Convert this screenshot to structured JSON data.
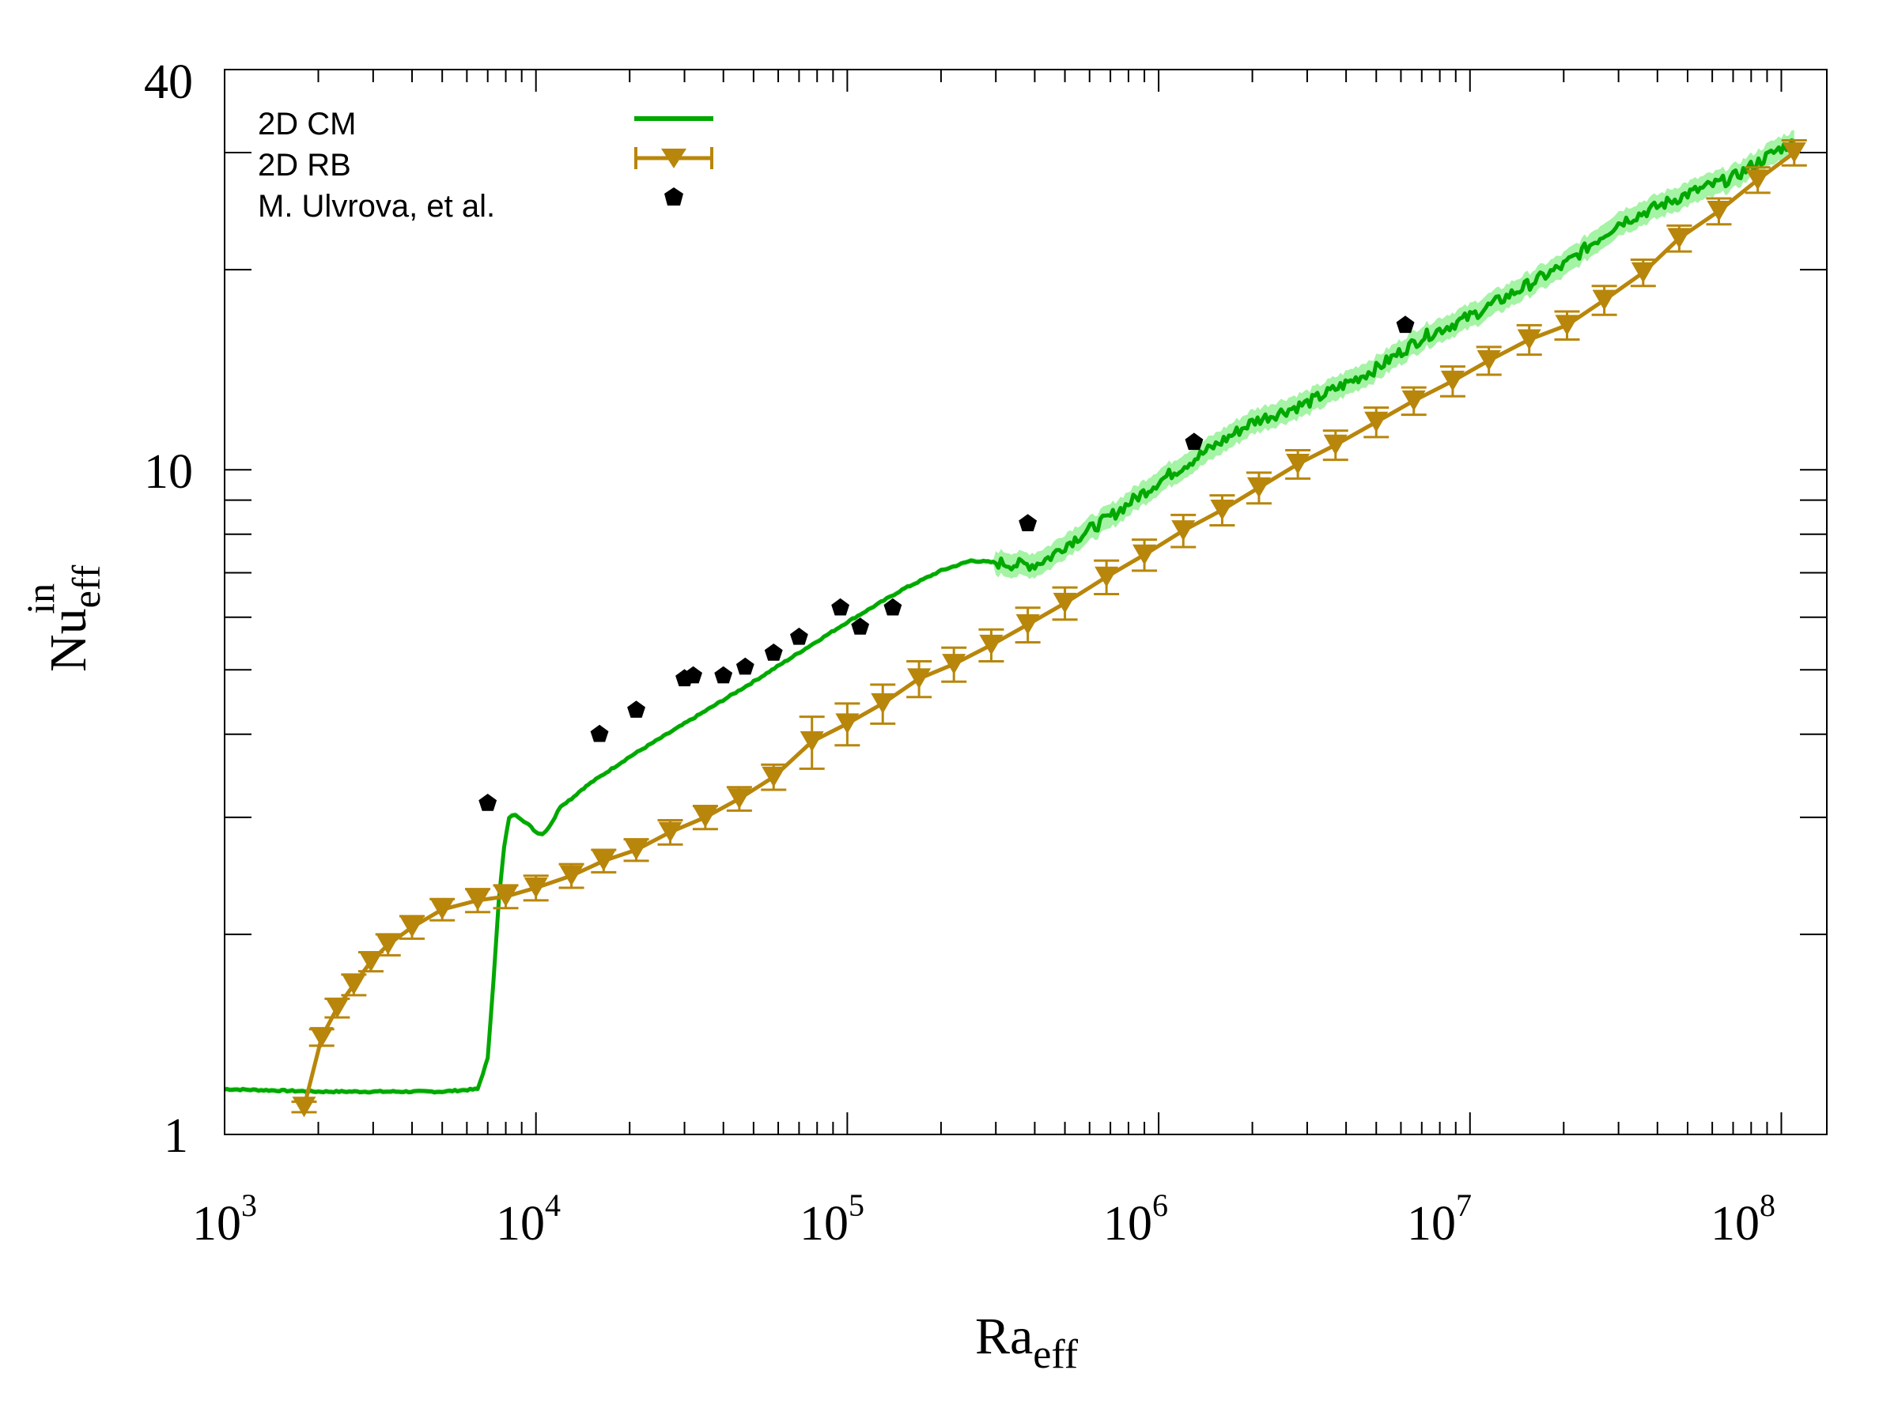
{
  "chart_data": {
    "type": "line",
    "title": "",
    "xscale": "log",
    "yscale": "log",
    "xlim": [
      1000,
      140000000
    ],
    "ylim": [
      1,
      40
    ],
    "xlabel": {
      "base": "Ra",
      "sub": "eff"
    },
    "ylabel": {
      "base": "Nu",
      "sub": "eff",
      "sup": "in"
    },
    "x_ticks": [
      {
        "value": 1000,
        "base": "10",
        "exp": "3"
      },
      {
        "value": 10000,
        "base": "10",
        "exp": "4"
      },
      {
        "value": 100000,
        "base": "10",
        "exp": "5"
      },
      {
        "value": 1000000,
        "base": "10",
        "exp": "6"
      },
      {
        "value": 10000000,
        "base": "10",
        "exp": "7"
      },
      {
        "value": 100000000,
        "base": "10",
        "exp": "8"
      }
    ],
    "y_ticks": [
      {
        "value": 1,
        "label": "1"
      },
      {
        "value": 10,
        "label": "10"
      },
      {
        "value": 40,
        "label": "40"
      }
    ],
    "legend_position": "top-left",
    "colors": {
      "cm": "#00a800",
      "cm_band": "#8ef08e",
      "rb": "#b8860b",
      "ulvrova": "#000000"
    },
    "series": [
      {
        "name": "2D CM",
        "style": "line",
        "x": [
          1000,
          2000,
          5000,
          6500,
          7000,
          7300,
          7600,
          7900,
          8200,
          8600,
          9000,
          9500,
          10000,
          10500,
          11000,
          11500,
          12000,
          13000,
          14000,
          15000,
          20000,
          30000,
          50000,
          100000,
          150000,
          200000,
          250000,
          300000,
          350000,
          400000,
          450000,
          500000,
          700000,
          1000000,
          2000000,
          3000000,
          5000000,
          7000000,
          10000000,
          20000000,
          30000000,
          50000000,
          70000000,
          100000000,
          110000000
        ],
        "y": [
          1.17,
          1.16,
          1.16,
          1.17,
          1.3,
          1.7,
          2.25,
          2.7,
          3.0,
          3.03,
          2.98,
          2.92,
          2.85,
          2.83,
          2.9,
          3.0,
          3.12,
          3.2,
          3.3,
          3.38,
          3.7,
          4.15,
          4.8,
          5.9,
          6.6,
          7.05,
          7.3,
          7.25,
          7.2,
          7.2,
          7.4,
          7.7,
          8.5,
          9.6,
          11.8,
          12.6,
          14.2,
          15.8,
          17.0,
          20.3,
          23.5,
          26.0,
          27.5,
          30.5,
          31.0
        ]
      },
      {
        "name": "2D RB",
        "style": "line+triangle-down+errorbars",
        "x": [
          1800,
          2050,
          2300,
          2600,
          2950,
          3350,
          4000,
          5000,
          6500,
          8000,
          10000,
          13000,
          16500,
          21000,
          27000,
          35000,
          45000,
          58000,
          77000,
          100000,
          130000,
          170000,
          220000,
          290000,
          380000,
          500000,
          680000,
          900000,
          1200000,
          1600000,
          2100000,
          2800000,
          3700000,
          5000000,
          6600000,
          8800000,
          11500000,
          15500000,
          20500000,
          27000000,
          36000000,
          47000000,
          63000000,
          84000000,
          110000000
        ],
        "y": [
          1.1,
          1.4,
          1.55,
          1.68,
          1.82,
          1.93,
          2.05,
          2.18,
          2.25,
          2.28,
          2.35,
          2.45,
          2.58,
          2.68,
          2.85,
          3.0,
          3.2,
          3.45,
          3.9,
          4.15,
          4.45,
          4.85,
          5.1,
          5.45,
          5.85,
          6.3,
          6.9,
          7.45,
          8.1,
          8.7,
          9.4,
          10.2,
          10.9,
          11.8,
          12.7,
          13.6,
          14.6,
          15.7,
          16.5,
          18.0,
          19.8,
          22.3,
          24.5,
          27.3,
          30.0
        ],
        "yerr": [
          0.02,
          0.04,
          0.05,
          0.06,
          0.06,
          0.07,
          0.08,
          0.08,
          0.09,
          0.09,
          0.1,
          0.1,
          0.1,
          0.1,
          0.12,
          0.12,
          0.13,
          0.15,
          0.35,
          0.3,
          0.3,
          0.3,
          0.3,
          0.3,
          0.35,
          0.35,
          0.4,
          0.4,
          0.45,
          0.45,
          0.5,
          0.5,
          0.55,
          0.6,
          0.6,
          0.7,
          0.7,
          0.8,
          0.8,
          0.9,
          0.9,
          1.0,
          1.1,
          1.2,
          1.3
        ]
      },
      {
        "name": "M. Ulvrova, et al.",
        "style": "points",
        "x": [
          7000,
          16000,
          21000,
          30000,
          32000,
          40000,
          47000,
          58000,
          70000,
          95000,
          110000,
          140000,
          380000,
          1300000,
          6200000
        ],
        "y": [
          3.15,
          4.0,
          4.35,
          4.85,
          4.9,
          4.9,
          5.05,
          5.3,
          5.6,
          6.2,
          5.8,
          6.2,
          8.3,
          11.0,
          16.5
        ]
      }
    ]
  }
}
